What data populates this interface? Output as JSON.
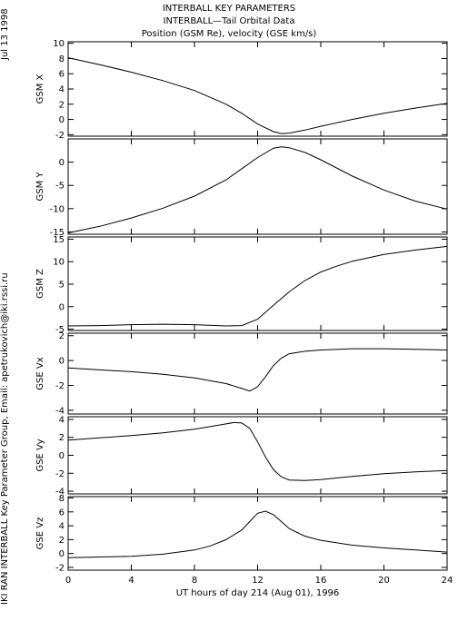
{
  "header": {
    "date": "Jul 13 1998",
    "title1": "INTERBALL KEY PARAMETERS",
    "title2": "INTERBALL—Tail Orbital Data",
    "title3": "Position (GSM Re), velocity (GSE km/s)"
  },
  "footer_credit": "IKI RAN INTERBALL Key Parameter Group, Email: apetrukovich@iki.rssi.ru",
  "chart_data": {
    "type": "line",
    "xlabel": "UT hours of day 214 (Aug 01), 1996",
    "xlim": [
      0,
      24
    ],
    "xticks": [
      0,
      4,
      8,
      12,
      16,
      20,
      24
    ],
    "panels": [
      {
        "ylabel": "GSM X",
        "ylim": [
          -2.2,
          10.2
        ],
        "yticks": [
          -2,
          0,
          2,
          4,
          6,
          8,
          10
        ],
        "x": [
          0,
          2,
          4,
          6,
          8,
          10,
          11,
          12,
          13,
          13.5,
          14,
          15,
          16,
          18,
          20,
          22,
          24
        ],
        "y": [
          8.1,
          7.2,
          6.2,
          5.1,
          3.8,
          2.0,
          0.8,
          -0.6,
          -1.6,
          -1.85,
          -1.8,
          -1.4,
          -0.9,
          0.0,
          0.8,
          1.5,
          2.1
        ]
      },
      {
        "ylabel": "GSM Y",
        "ylim": [
          -15.5,
          5
        ],
        "yticks": [
          -15,
          -10,
          -5,
          0
        ],
        "x": [
          0,
          2,
          4,
          6,
          8,
          10,
          11,
          12,
          13,
          13.5,
          14,
          15,
          16,
          18,
          20,
          22,
          24
        ],
        "y": [
          -15.2,
          -13.8,
          -12.0,
          -9.9,
          -7.3,
          -3.8,
          -1.4,
          1.0,
          3.0,
          3.3,
          3.1,
          2.1,
          0.5,
          -3.0,
          -6.0,
          -8.4,
          -10.1
        ]
      },
      {
        "ylabel": "GSM Z",
        "ylim": [
          -5.3,
          15.5
        ],
        "yticks": [
          -5,
          0,
          5,
          10,
          15
        ],
        "x": [
          0,
          2,
          4,
          6,
          8,
          10,
          11,
          12,
          13,
          14,
          15,
          16,
          17,
          18,
          20,
          22,
          24
        ],
        "y": [
          -4.3,
          -4.2,
          -4.0,
          -3.9,
          -4.0,
          -4.3,
          -4.2,
          -2.8,
          0.3,
          3.3,
          5.8,
          7.7,
          9.0,
          10.1,
          11.6,
          12.6,
          13.4
        ]
      },
      {
        "ylabel": "GSE Vx",
        "ylim": [
          -4.3,
          2.2
        ],
        "yticks": [
          -4,
          -2,
          0,
          2
        ],
        "x": [
          0,
          2,
          4,
          6,
          8,
          10,
          11,
          11.5,
          12,
          12.5,
          13,
          13.5,
          14,
          15,
          16,
          18,
          20,
          22,
          24
        ],
        "y": [
          -0.6,
          -0.75,
          -0.9,
          -1.1,
          -1.4,
          -1.85,
          -2.25,
          -2.45,
          -2.1,
          -1.3,
          -0.4,
          0.2,
          0.55,
          0.75,
          0.85,
          0.95,
          0.95,
          0.9,
          0.85
        ]
      },
      {
        "ylabel": "GSE Vy",
        "ylim": [
          -4.3,
          4.3
        ],
        "yticks": [
          -4,
          -2,
          0,
          2,
          4
        ],
        "x": [
          0,
          2,
          4,
          6,
          8,
          9,
          10,
          10.5,
          11,
          11.5,
          12,
          12.5,
          13,
          13.5,
          14,
          15,
          16,
          18,
          20,
          22,
          24
        ],
        "y": [
          1.7,
          1.95,
          2.2,
          2.5,
          2.9,
          3.2,
          3.5,
          3.65,
          3.6,
          3.0,
          1.5,
          -0.2,
          -1.6,
          -2.4,
          -2.75,
          -2.8,
          -2.7,
          -2.35,
          -2.05,
          -1.85,
          -1.7
        ]
      },
      {
        "ylabel": "GSE Vz",
        "ylim": [
          -2.4,
          8.2
        ],
        "yticks": [
          -2,
          0,
          2,
          4,
          6,
          8
        ],
        "x": [
          0,
          2,
          4,
          6,
          8,
          9,
          10,
          11,
          11.5,
          12,
          12.5,
          13,
          13.5,
          14,
          15,
          16,
          18,
          20,
          22,
          24
        ],
        "y": [
          -0.6,
          -0.5,
          -0.4,
          -0.1,
          0.5,
          1.1,
          2.0,
          3.4,
          4.6,
          5.8,
          6.1,
          5.6,
          4.6,
          3.6,
          2.5,
          1.9,
          1.2,
          0.8,
          0.5,
          0.2
        ]
      }
    ]
  }
}
